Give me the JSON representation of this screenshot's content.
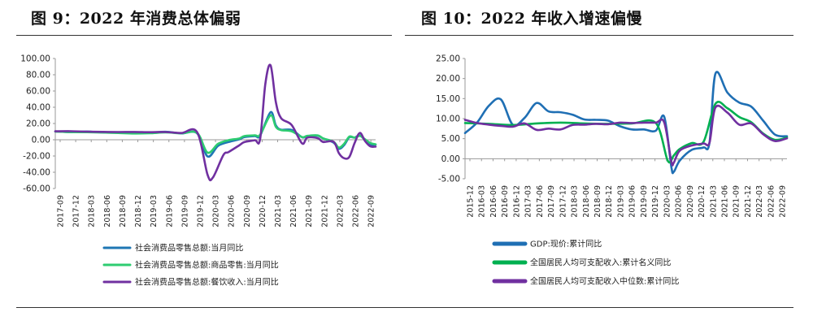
{
  "chart_data": [
    {
      "type": "line",
      "title": "图 9：2022 年消费总体偏弱",
      "ylim": [
        -60,
        100
      ],
      "yticks": [
        "100.00",
        "80.00",
        "60.00",
        "40.00",
        "20.00",
        "0.00",
        "-20.00",
        "-40.00",
        "-60.00"
      ],
      "x_labels": [
        "2017-09",
        "2017-12",
        "2018-03",
        "2018-06",
        "2018-09",
        "2018-12",
        "2019-03",
        "2019-06",
        "2019-09",
        "2019-12",
        "2020-03",
        "2020-06",
        "2020-09",
        "2020-12",
        "2021-03",
        "2021-06",
        "2021-09",
        "2021-12",
        "2022-03",
        "2022-06",
        "2022-09"
      ],
      "x_range": [
        0,
        61
      ],
      "grid": false,
      "legend_position": "bottom",
      "series": [
        {
          "name": "社会消费品零售总额:当月同比",
          "color": "#1f77b4",
          "points": [
            [
              0,
              10.3
            ],
            [
              3,
              9.4
            ],
            [
              6,
              10.1
            ],
            [
              9,
              9.0
            ],
            [
              12,
              8.8
            ],
            [
              15,
              8.2
            ],
            [
              18,
              8.6
            ],
            [
              21,
              9.8
            ],
            [
              24,
              7.8
            ],
            [
              27,
              8.0
            ],
            [
              29,
              -20.5
            ],
            [
              31,
              -7.5
            ],
            [
              33,
              -2.8
            ],
            [
              35,
              0.5
            ],
            [
              36,
              3.3
            ],
            [
              38,
              4.6
            ],
            [
              39,
              5.0
            ],
            [
              41,
              33.9
            ],
            [
              42,
              17.7
            ],
            [
              43,
              12.4
            ],
            [
              45,
              12.1
            ],
            [
              47,
              3.1
            ],
            [
              48,
              4.4
            ],
            [
              50,
              4.9
            ],
            [
              51,
              1.7
            ],
            [
              53,
              -3.5
            ],
            [
              54,
              -11.1
            ],
            [
              55,
              -6.7
            ],
            [
              56,
              3.1
            ],
            [
              57,
              2.7
            ],
            [
              58,
              5.4
            ],
            [
              59,
              -0.5
            ],
            [
              60,
              -5.9
            ],
            [
              61,
              -5.9
            ]
          ]
        },
        {
          "name": "社会消费品零售总额:商品零售:当月同比",
          "color": "#2ecc71",
          "points": [
            [
              0,
              10.0
            ],
            [
              3,
              9.4
            ],
            [
              6,
              9.3
            ],
            [
              9,
              8.9
            ],
            [
              12,
              8.3
            ],
            [
              15,
              7.7
            ],
            [
              18,
              8.0
            ],
            [
              21,
              9.0
            ],
            [
              24,
              7.9
            ],
            [
              27,
              8.5
            ],
            [
              29,
              -15.8
            ],
            [
              31,
              -5.0
            ],
            [
              33,
              -0.5
            ],
            [
              35,
              1.5
            ],
            [
              36,
              4.5
            ],
            [
              38,
              5.4
            ],
            [
              39,
              6.2
            ],
            [
              41,
              30.0
            ],
            [
              42,
              15.9
            ],
            [
              43,
              11.9
            ],
            [
              45,
              10.4
            ],
            [
              47,
              3.3
            ],
            [
              48,
              4.8
            ],
            [
              50,
              5.4
            ],
            [
              51,
              1.7
            ],
            [
              53,
              -2.5
            ],
            [
              54,
              -9.7
            ],
            [
              55,
              -5.0
            ],
            [
              56,
              3.9
            ],
            [
              57,
              2.6
            ],
            [
              58,
              4.8
            ],
            [
              59,
              0.5
            ],
            [
              60,
              -4.1
            ],
            [
              61,
              -5.6
            ]
          ]
        },
        {
          "name": "社会消费品零售总额:餐饮收入:当月同比",
          "color": "#7030a0",
          "points": [
            [
              0,
              10.4
            ],
            [
              3,
              10.5
            ],
            [
              6,
              10.0
            ],
            [
              9,
              9.7
            ],
            [
              12,
              9.5
            ],
            [
              15,
              9.6
            ],
            [
              18,
              9.3
            ],
            [
              21,
              9.5
            ],
            [
              24,
              8.3
            ],
            [
              27,
              9.4
            ],
            [
              29,
              -43.1
            ],
            [
              30,
              -46.6
            ],
            [
              32,
              -18.9
            ],
            [
              33,
              -15.2
            ],
            [
              35,
              -7.0
            ],
            [
              36,
              -2.9
            ],
            [
              38,
              -0.6
            ],
            [
              39,
              0.6
            ],
            [
              40,
              68.9
            ],
            [
              41,
              91.6
            ],
            [
              42,
              46.4
            ],
            [
              43,
              26.6
            ],
            [
              45,
              18.2
            ],
            [
              47,
              -4.5
            ],
            [
              48,
              2.6
            ],
            [
              50,
              1.9
            ],
            [
              51,
              -2.7
            ],
            [
              53,
              -2.5
            ],
            [
              54,
              -16.4
            ],
            [
              55,
              -22.7
            ],
            [
              56,
              -21.1
            ],
            [
              57,
              -4.0
            ],
            [
              58,
              8.4
            ],
            [
              59,
              -1.7
            ],
            [
              60,
              -8.1
            ],
            [
              61,
              -8.4
            ]
          ]
        }
      ]
    },
    {
      "type": "line",
      "title": "图 10：2022 年收入增速偏慢",
      "ylim": [
        -5,
        25
      ],
      "yticks": [
        "25.00",
        "20.00",
        "15.00",
        "10.00",
        "5.00",
        "0.00",
        "-5.00"
      ],
      "x_labels": [
        "2015-12",
        "2016-03",
        "2016-06",
        "2016-09",
        "2016-12",
        "2017-03",
        "2017-06",
        "2017-09",
        "2017-12",
        "2018-03",
        "2018-06",
        "2018-09",
        "2018-12",
        "2019-03",
        "2019-06",
        "2019-09",
        "2019-12",
        "2020-03",
        "2020-06",
        "2020-09",
        "2020-12",
        "2021-03",
        "2021-06",
        "2021-09",
        "2021-12",
        "2022-03",
        "2022-06",
        "2022-09"
      ],
      "x_range": [
        0,
        27
      ],
      "grid": false,
      "legend_position": "bottom",
      "series": [
        {
          "name": "GDP:现价:累计同比",
          "color": "#1f6fb4",
          "points": [
            [
              0,
              6.4
            ],
            [
              1,
              9.0
            ],
            [
              2,
              13.2
            ],
            [
              3,
              14.8
            ],
            [
              4,
              8.5
            ],
            [
              5,
              10.2
            ],
            [
              6,
              13.9
            ],
            [
              7,
              11.8
            ],
            [
              8,
              11.6
            ],
            [
              9,
              11.0
            ],
            [
              10,
              9.8
            ],
            [
              11,
              9.7
            ],
            [
              12,
              9.5
            ],
            [
              13,
              8.1
            ],
            [
              14,
              7.3
            ],
            [
              15,
              7.3
            ],
            [
              16,
              7.0
            ],
            [
              16.7,
              10.5
            ],
            [
              17.3,
              -2.0
            ],
            [
              17.5,
              -3.3
            ],
            [
              18,
              -0.5
            ],
            [
              19,
              2.2
            ],
            [
              20,
              2.8
            ],
            [
              20.5,
              4.0
            ],
            [
              21,
              21.2
            ],
            [
              22,
              16.5
            ],
            [
              23,
              14.0
            ],
            [
              24,
              13.0
            ],
            [
              25,
              9.5
            ],
            [
              26,
              6.0
            ],
            [
              27,
              5.6
            ]
          ]
        },
        {
          "name": "全国居民人均可支配收入:累计名义同比",
          "color": "#00b050",
          "points": [
            [
              0,
              8.9
            ],
            [
              2,
              8.7
            ],
            [
              4,
              8.4
            ],
            [
              6,
              8.8
            ],
            [
              8,
              9.0
            ],
            [
              10,
              8.8
            ],
            [
              12,
              8.7
            ],
            [
              14,
              8.8
            ],
            [
              16,
              8.9
            ],
            [
              17,
              -0.5
            ],
            [
              17.5,
              0.8
            ],
            [
              18,
              2.4
            ],
            [
              19,
              3.9
            ],
            [
              20,
              4.2
            ],
            [
              21,
              13.7
            ],
            [
              22,
              12.6
            ],
            [
              23,
              10.4
            ],
            [
              24,
              9.1
            ],
            [
              25,
              6.3
            ],
            [
              26,
              4.7
            ],
            [
              27,
              5.3
            ]
          ]
        },
        {
          "name": "全国居民人均可支配收入中位数:累计同比",
          "color": "#7030a0",
          "points": [
            [
              0,
              9.7
            ],
            [
              1,
              8.9
            ],
            [
              2,
              8.5
            ],
            [
              3,
              8.2
            ],
            [
              4,
              8.0
            ],
            [
              5,
              8.8
            ],
            [
              6,
              7.2
            ],
            [
              7,
              7.5
            ],
            [
              8,
              7.3
            ],
            [
              9,
              8.4
            ],
            [
              10,
              8.5
            ],
            [
              11,
              8.7
            ],
            [
              12,
              8.6
            ],
            [
              13,
              9.0
            ],
            [
              14,
              8.9
            ],
            [
              15,
              9.0
            ],
            [
              16,
              9.0
            ],
            [
              16.7,
              9.1
            ],
            [
              17.3,
              -0.7
            ],
            [
              17.5,
              -1.0
            ],
            [
              18,
              2.0
            ],
            [
              19,
              3.3
            ],
            [
              20,
              3.8
            ],
            [
              20.5,
              4.0
            ],
            [
              21,
              12.8
            ],
            [
              22,
              11.5
            ],
            [
              23,
              8.5
            ],
            [
              24,
              8.8
            ],
            [
              25,
              6.1
            ],
            [
              26,
              4.4
            ],
            [
              27,
              5.1
            ]
          ]
        }
      ]
    }
  ]
}
